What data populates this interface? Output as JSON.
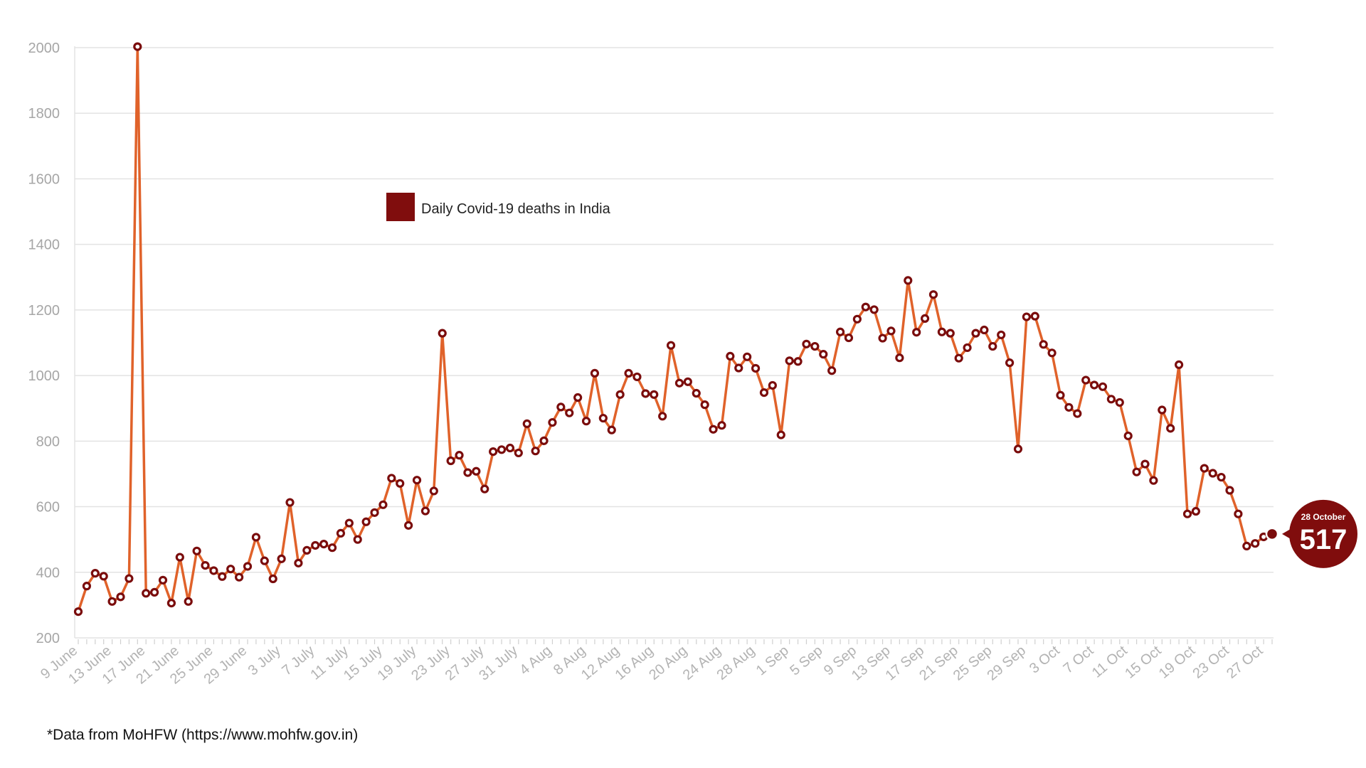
{
  "chart_data": {
    "type": "line",
    "series": [
      {
        "name": "Daily Covid-19 deaths in India",
        "values": [
          280,
          358,
          397,
          388,
          311,
          325,
          381,
          2003,
          336,
          339,
          376,
          306,
          446,
          311,
          465,
          421,
          405,
          387,
          410,
          385,
          418,
          507,
          435,
          380,
          441,
          613,
          428,
          467,
          482,
          486,
          475,
          519,
          550,
          500,
          554,
          582,
          606,
          687,
          671,
          543,
          681,
          587,
          648,
          1129,
          740,
          757,
          704,
          708,
          654,
          768,
          774,
          779,
          764,
          853,
          770,
          801,
          857,
          904,
          886,
          933,
          861,
          1007,
          870,
          834,
          942,
          1007,
          996,
          945,
          942,
          876,
          1092,
          977,
          981,
          946,
          911,
          836,
          848,
          1059,
          1023,
          1057,
          1022,
          948,
          970,
          819,
          1045,
          1043,
          1096,
          1089,
          1065,
          1015,
          1133,
          1115,
          1172,
          1209,
          1201,
          1114,
          1136,
          1054,
          1290,
          1132,
          1174,
          1247,
          1133,
          1129,
          1053,
          1085,
          1129,
          1139,
          1089,
          1124,
          1039,
          776,
          1179,
          1181,
          1095,
          1069,
          940,
          903,
          884,
          986,
          971,
          966,
          928,
          918,
          816,
          706,
          730,
          680,
          895,
          839,
          1033,
          578,
          586,
          717,
          702,
          690,
          650,
          578,
          480,
          488,
          508,
          517
        ]
      }
    ],
    "x_tick_labels": [
      "9 June",
      "13 June",
      "17 June",
      "21 June",
      "25 June",
      "29 June",
      "3 July",
      "7 July",
      "11 July",
      "15 July",
      "19 July",
      "23 July",
      "27 July",
      "31 July",
      "4 Aug",
      "8 Aug",
      "12 Aug",
      "16 Aug",
      "20 Aug",
      "24 Aug",
      "28 Aug",
      "1 Sep",
      "5 Sep",
      "9 Sep",
      "13 Sep",
      "17 Sep",
      "21 Sep",
      "25 Sep",
      "29 Sep",
      "3 Oct",
      "7 Oct",
      "11 Oct",
      "15 Oct",
      "19 Oct",
      "23 Oct",
      "27 Oct"
    ],
    "y_ticks": [
      200,
      400,
      600,
      800,
      1000,
      1200,
      1400,
      1600,
      1800,
      2000
    ],
    "ylim": [
      200,
      2000
    ],
    "grid": true,
    "legend_position": "upper-left",
    "line_color": "#e0622a",
    "marker_color": "#7a0c0c",
    "legend_color": "#800d0d",
    "callout": {
      "date": "28 October",
      "value": "517"
    }
  },
  "footnote": "*Data from MoHFW (https://www.mohfw.gov.in)"
}
